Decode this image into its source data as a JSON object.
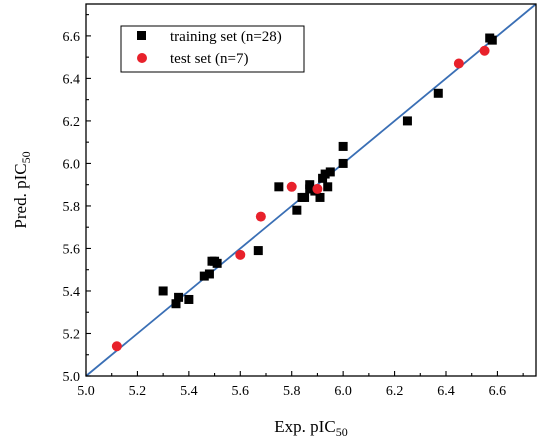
{
  "chart_data": {
    "type": "scatter",
    "xlabel": "Exp. pIC50",
    "ylabel": "Pred. pIC50",
    "xlim": [
      5.0,
      6.75
    ],
    "ylim": [
      5.0,
      6.75
    ],
    "xticks": [
      "5.0",
      "5.2",
      "5.4",
      "5.6",
      "5.8",
      "6.0",
      "6.2",
      "6.4",
      "6.6"
    ],
    "yticks": [
      "5.0",
      "5.2",
      "5.4",
      "5.6",
      "5.8",
      "6.0",
      "6.2",
      "6.4",
      "6.6"
    ],
    "legend_position": "top-left",
    "fit_line": {
      "from": [
        5.0,
        5.0
      ],
      "to": [
        6.75,
        6.75
      ],
      "color": "#3a6fb5"
    },
    "series": [
      {
        "name": "training set (n=28)",
        "marker": "square",
        "color": "#000000",
        "points": [
          [
            5.3,
            5.4
          ],
          [
            5.35,
            5.34
          ],
          [
            5.36,
            5.37
          ],
          [
            5.4,
            5.36
          ],
          [
            5.46,
            5.47
          ],
          [
            5.48,
            5.48
          ],
          [
            5.49,
            5.54
          ],
          [
            5.51,
            5.53
          ],
          [
            5.67,
            5.59
          ],
          [
            5.75,
            5.89
          ],
          [
            5.82,
            5.78
          ],
          [
            5.85,
            5.84
          ],
          [
            5.87,
            5.9
          ],
          [
            5.87,
            5.88
          ],
          [
            5.89,
            5.87
          ],
          [
            5.91,
            5.84
          ],
          [
            5.92,
            5.93
          ],
          [
            5.94,
            5.89
          ],
          [
            5.95,
            5.96
          ],
          [
            6.0,
            6.0
          ],
          [
            6.0,
            6.08
          ],
          [
            6.25,
            6.2
          ],
          [
            6.37,
            6.33
          ],
          [
            6.57,
            6.59
          ],
          [
            6.58,
            6.58
          ],
          [
            5.84,
            5.84
          ],
          [
            5.93,
            5.95
          ],
          [
            5.5,
            5.54
          ]
        ]
      },
      {
        "name": "test set (n=7)",
        "marker": "circle",
        "color": "#e8212b",
        "points": [
          [
            5.12,
            5.14
          ],
          [
            5.6,
            5.57
          ],
          [
            5.68,
            5.75
          ],
          [
            5.8,
            5.89
          ],
          [
            5.9,
            5.88
          ],
          [
            6.45,
            6.47
          ],
          [
            6.55,
            6.53
          ]
        ]
      }
    ]
  }
}
